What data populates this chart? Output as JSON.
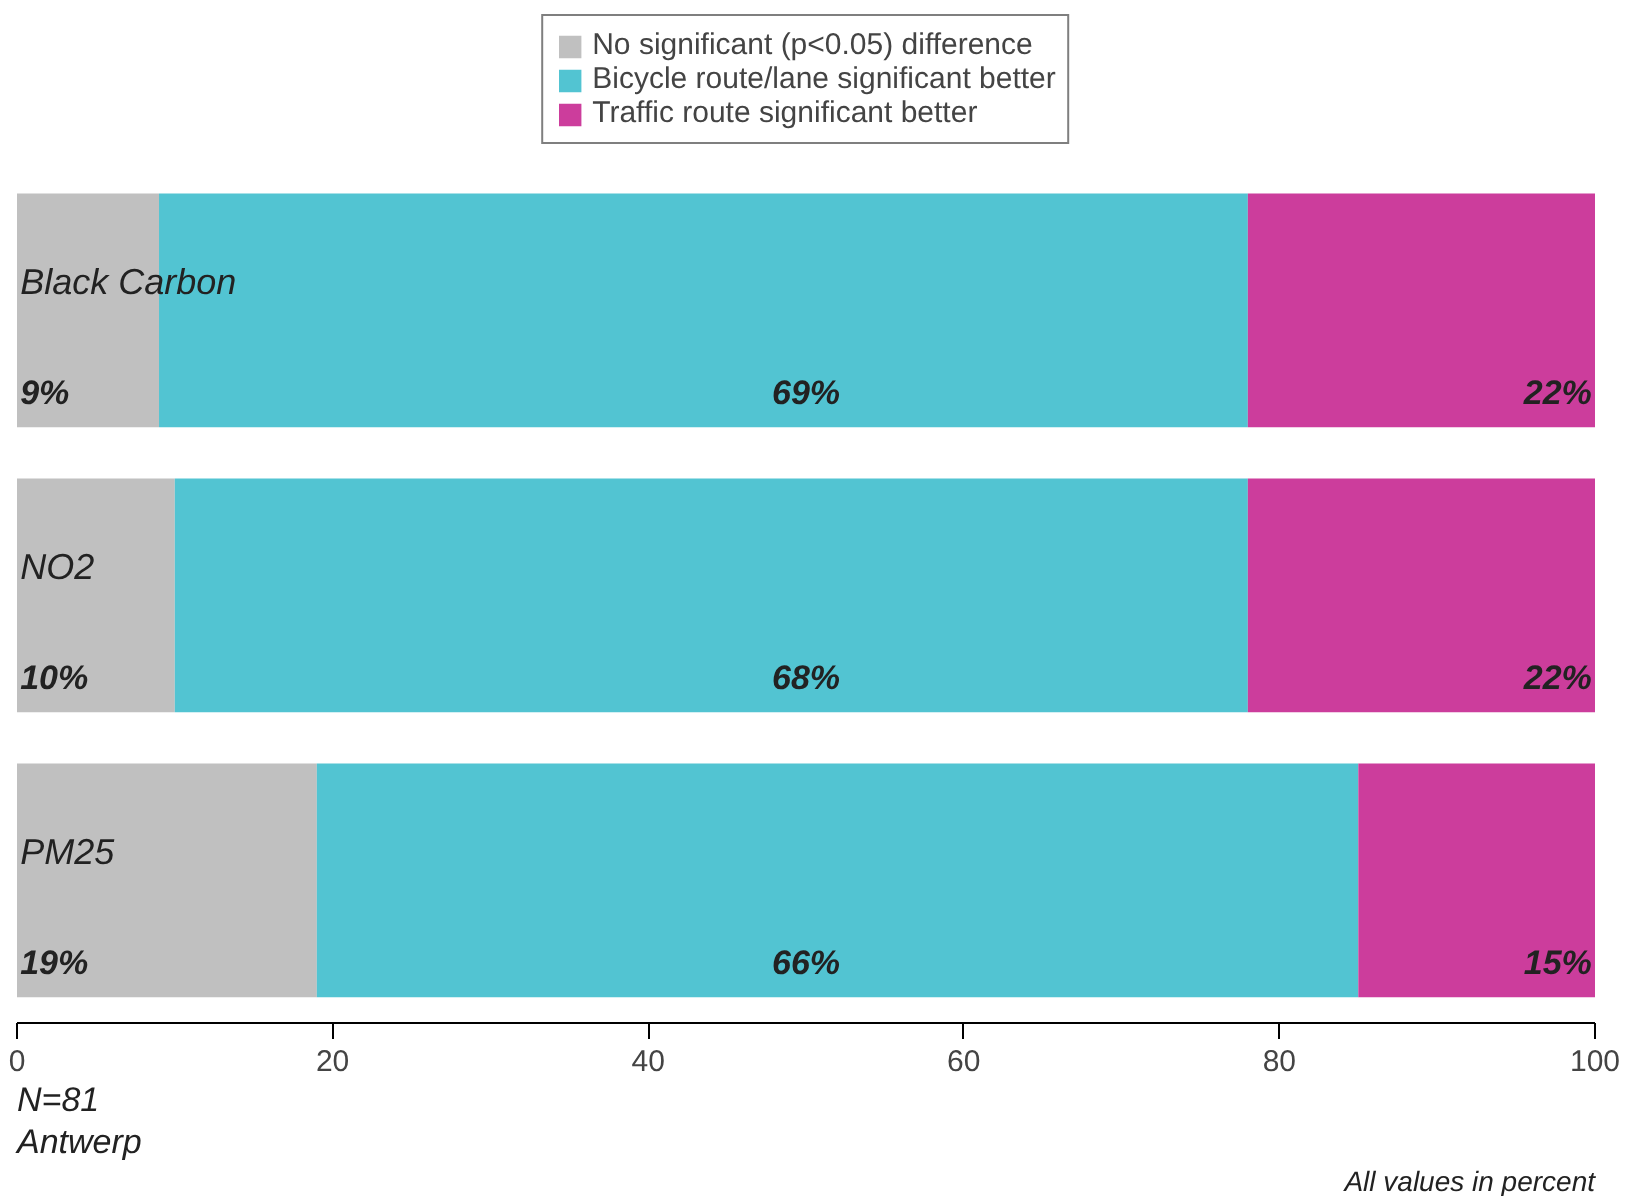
{
  "chart_data": {
    "type": "bar",
    "orientation": "horizontal",
    "stacked": true,
    "categories": [
      "Black Carbon",
      "NO2",
      "PM25"
    ],
    "series": [
      {
        "name": "No significant (p<0.05) difference",
        "color": "#c0c0c0",
        "values": [
          9,
          10,
          19
        ],
        "value_labels": [
          "9%",
          "10%",
          "19%"
        ]
      },
      {
        "name": "Bicycle route/lane significant better",
        "color": "#52c4d2",
        "values": [
          69,
          68,
          66
        ],
        "value_labels": [
          "69%",
          "68%",
          "66%"
        ]
      },
      {
        "name": "Traffic route significant better",
        "color": "#cc3d9c",
        "values": [
          22,
          22,
          15
        ],
        "value_labels": [
          "22%",
          "22%",
          "15%"
        ]
      }
    ],
    "xlim": [
      0,
      100
    ],
    "xticks": [
      0,
      20,
      40,
      60,
      80,
      100
    ],
    "legend": "top",
    "grid": false,
    "annotations": [
      "N=81",
      "Antwerp",
      "All values in percent"
    ]
  }
}
